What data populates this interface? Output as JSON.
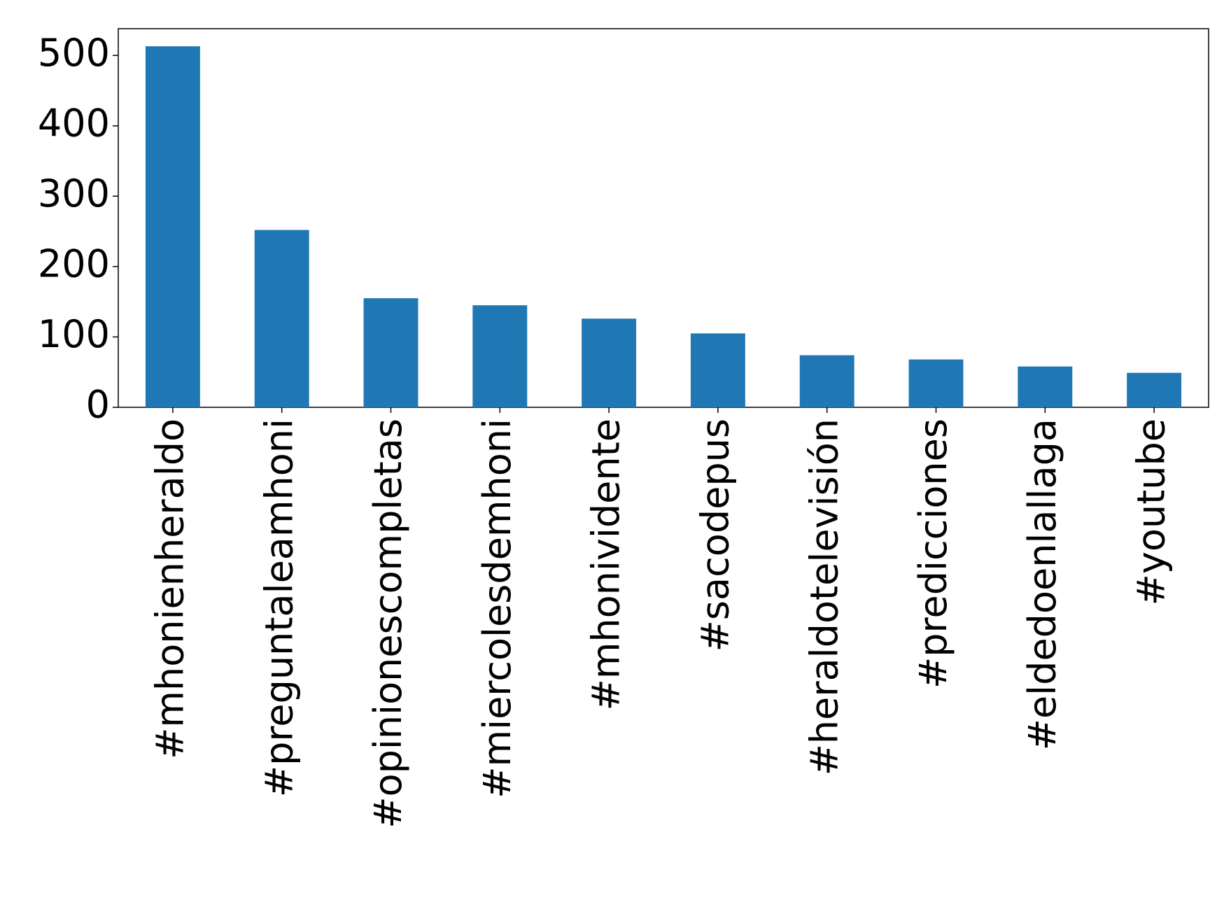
{
  "chart_data": {
    "type": "bar",
    "categories": [
      "#mhonienheraldo",
      "#preguntaleamhoni",
      "#opinionescompletas",
      "#miercolesdemhoni",
      "#mhonividente",
      "#sacodepus",
      "#heraldotelevisión",
      "#predicciones",
      "#eldedoenlallaga",
      "#youtube"
    ],
    "values": [
      513,
      252,
      155,
      145,
      126,
      105,
      74,
      68,
      58,
      49
    ],
    "color": "#1f77b4",
    "ylim": [
      0,
      538
    ],
    "yticks": [
      0,
      100,
      200,
      300,
      400,
      500
    ],
    "grid": false
  }
}
